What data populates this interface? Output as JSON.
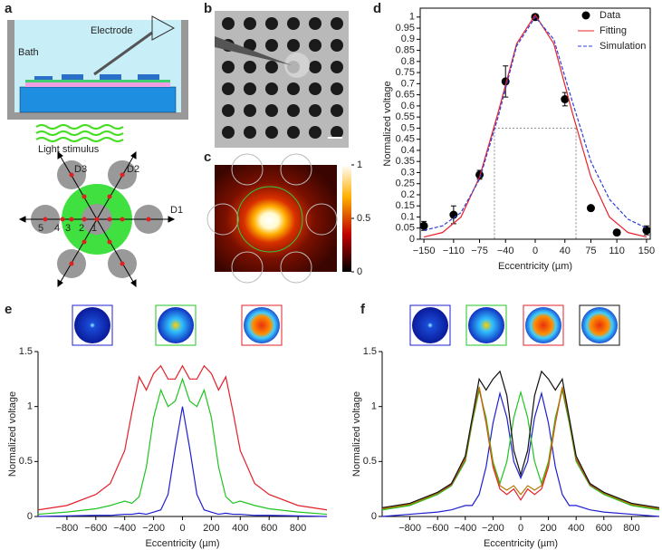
{
  "panel_labels": [
    "a",
    "b",
    "c",
    "d",
    "e",
    "f"
  ],
  "diagram_a": {
    "electrode": "Electrode",
    "bath": "Bath",
    "stimulus": "Light stimulus",
    "directions": [
      "D3",
      "D2",
      "D1"
    ],
    "positions": [
      "5",
      "4",
      "3",
      "2",
      "1"
    ]
  },
  "panel_c": {
    "colorbar": {
      "lim": [
        0,
        1
      ],
      "ticks": [
        0,
        0.5,
        1
      ]
    }
  },
  "chart_data": [
    {
      "type": "scatter",
      "x_label": "Eccentricity (µm)",
      "y_label": "Normalized voltage",
      "xlim": [
        -155,
        155
      ],
      "ylim": [
        0,
        1.04
      ],
      "xticks": [
        {
          "value": -150,
          "label": "−150"
        },
        {
          "value": -110,
          "label": "−110"
        },
        {
          "value": -75,
          "label": "−75"
        },
        {
          "value": -40,
          "label": "−40"
        },
        0,
        40,
        75,
        110,
        150
      ],
      "yticks": [
        0,
        0.05,
        0.1,
        0.15,
        0.2,
        0.25,
        0.3,
        0.35,
        0.4,
        0.45,
        0.5,
        0.55,
        0.6,
        0.65,
        0.7,
        0.75,
        0.8,
        0.85,
        0.9,
        0.95,
        1
      ],
      "guides": {
        "y": 0.5,
        "x": [
          -55,
          55
        ]
      },
      "series": [
        {
          "name": "Data",
          "type": "scatter",
          "color": "#000000",
          "x": [
            -150,
            -110,
            -75,
            -40,
            0,
            40,
            75,
            110,
            150
          ],
          "values": [
            0.06,
            0.11,
            0.29,
            0.71,
            1.0,
            0.63,
            0.14,
            0.03,
            0.04
          ],
          "errors": [
            0.02,
            0.04,
            0.02,
            0.07,
            0.01,
            0.03,
            0.01,
            0.01,
            0.02
          ]
        },
        {
          "name": "Fitting",
          "type": "line",
          "color": "#e8202a",
          "x": [
            -150,
            -125,
            -100,
            -75,
            -50,
            -25,
            0,
            25,
            50,
            75,
            100,
            125,
            150
          ],
          "values": [
            0.01,
            0.03,
            0.1,
            0.28,
            0.57,
            0.88,
            1.01,
            0.88,
            0.57,
            0.28,
            0.1,
            0.03,
            0.01
          ]
        },
        {
          "name": "Simulation",
          "type": "line",
          "dashed": true,
          "color": "#2f3fd8",
          "x": [
            -150,
            -125,
            -100,
            -75,
            -50,
            -25,
            0,
            25,
            50,
            75,
            100,
            125,
            150
          ],
          "values": [
            0.04,
            0.06,
            0.12,
            0.27,
            0.55,
            0.87,
            1.0,
            0.9,
            0.62,
            0.35,
            0.18,
            0.09,
            0.05
          ]
        }
      ],
      "legend": "upper right",
      "frame": true
    },
    {
      "type": "line",
      "x_label": "Eccentricity (µm)",
      "y_label": "Normalized voltage",
      "xlim": [
        -1000,
        1000
      ],
      "ylim": [
        0,
        1.5
      ],
      "xticks": [
        {
          "value": -800,
          "label": "−800"
        },
        {
          "value": -600,
          "label": "−600"
        },
        {
          "value": -400,
          "label": "−400"
        },
        {
          "value": -200,
          "label": "−200"
        },
        0,
        200,
        400,
        600,
        800
      ],
      "yticks": [
        0,
        0.5,
        1,
        1.5
      ],
      "x": [
        -1000,
        -800,
        -600,
        -500,
        -400,
        -350,
        -300,
        -250,
        -200,
        -150,
        -100,
        -50,
        0,
        50,
        100,
        150,
        200,
        250,
        300,
        350,
        400,
        500,
        600,
        800,
        1000
      ],
      "series": [
        {
          "color": "#1f1fd0",
          "values": [
            0,
            0.005,
            0.01,
            0.01,
            0.02,
            0.02,
            0.03,
            0.02,
            0.04,
            0.06,
            0.2,
            0.62,
            1.0,
            0.62,
            0.2,
            0.06,
            0.04,
            0.02,
            0.03,
            0.02,
            0.02,
            0.01,
            0.01,
            0.005,
            0
          ]
        },
        {
          "color": "#22c422",
          "values": [
            0.02,
            0.04,
            0.07,
            0.1,
            0.14,
            0.12,
            0.18,
            0.45,
            0.9,
            1.15,
            1.0,
            1.05,
            1.25,
            1.05,
            1.0,
            1.15,
            0.9,
            0.45,
            0.18,
            0.12,
            0.14,
            0.1,
            0.07,
            0.04,
            0.02
          ]
        },
        {
          "color": "#e3202a",
          "values": [
            0.06,
            0.1,
            0.2,
            0.3,
            0.6,
            0.95,
            1.27,
            1.15,
            1.3,
            1.37,
            1.25,
            1.25,
            1.37,
            1.25,
            1.25,
            1.37,
            1.3,
            1.15,
            1.27,
            0.95,
            0.6,
            0.3,
            0.2,
            0.1,
            0.06
          ]
        }
      ]
    },
    {
      "type": "line",
      "x_label": "Eccentricity (µm)",
      "y_label": "Normalized voltage",
      "xlim": [
        -1000,
        1000
      ],
      "ylim": [
        0,
        1.5
      ],
      "xticks": [
        {
          "value": -800,
          "label": "−800"
        },
        {
          "value": -600,
          "label": "−600"
        },
        {
          "value": -400,
          "label": "−400"
        },
        {
          "value": -200,
          "label": "−200"
        },
        0,
        200,
        400,
        600,
        800
      ],
      "yticks": [
        0,
        0.5,
        1,
        1.5
      ],
      "x": [
        -1000,
        -800,
        -600,
        -500,
        -400,
        -350,
        -300,
        -250,
        -200,
        -150,
        -100,
        -50,
        0,
        50,
        100,
        150,
        200,
        250,
        300,
        350,
        400,
        500,
        600,
        800,
        1000
      ],
      "series": [
        {
          "color": "#1f1fd0",
          "values": [
            0,
            0.02,
            0.04,
            0.06,
            0.1,
            0.1,
            0.2,
            0.45,
            0.85,
            1.12,
            0.9,
            0.5,
            0.35,
            0.5,
            0.9,
            1.12,
            0.85,
            0.45,
            0.2,
            0.1,
            0.1,
            0.06,
            0.04,
            0.02,
            0
          ]
        },
        {
          "color": "#22c422",
          "values": [
            0.06,
            0.1,
            0.2,
            0.28,
            0.5,
            0.85,
            1.15,
            0.9,
            0.5,
            0.3,
            0.5,
            0.9,
            1.13,
            0.9,
            0.5,
            0.3,
            0.5,
            0.9,
            1.15,
            0.85,
            0.5,
            0.28,
            0.2,
            0.1,
            0.06
          ]
        },
        {
          "color": "#e3202a",
          "values": [
            0.07,
            0.11,
            0.21,
            0.29,
            0.52,
            0.88,
            1.17,
            0.85,
            0.45,
            0.25,
            0.2,
            0.25,
            0.15,
            0.25,
            0.2,
            0.25,
            0.45,
            0.85,
            1.17,
            0.88,
            0.52,
            0.29,
            0.21,
            0.11,
            0.07
          ]
        },
        {
          "color": "#b07a00",
          "values": [
            0.07,
            0.11,
            0.21,
            0.3,
            0.53,
            0.89,
            1.18,
            0.87,
            0.48,
            0.28,
            0.24,
            0.28,
            0.2,
            0.28,
            0.24,
            0.28,
            0.48,
            0.87,
            1.18,
            0.89,
            0.53,
            0.3,
            0.21,
            0.11,
            0.07
          ]
        },
        {
          "color": "#111111",
          "values": [
            0.08,
            0.12,
            0.22,
            0.3,
            0.55,
            0.9,
            1.25,
            1.15,
            1.25,
            1.32,
            1.1,
            0.6,
            0.38,
            0.6,
            1.1,
            1.32,
            1.25,
            1.15,
            1.25,
            0.9,
            0.55,
            0.3,
            0.22,
            0.12,
            0.08
          ]
        }
      ]
    }
  ]
}
